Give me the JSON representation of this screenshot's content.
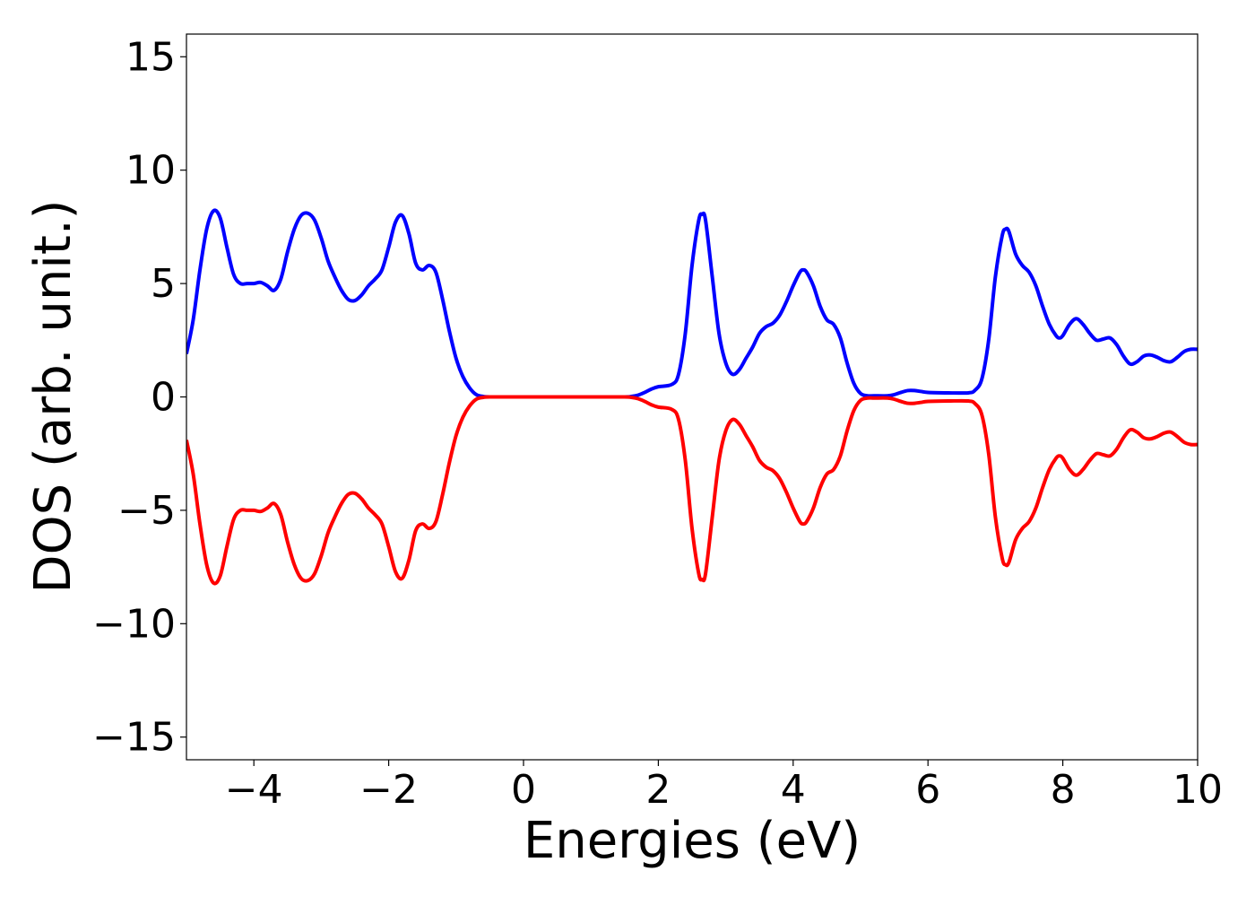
{
  "chart_data": {
    "type": "line",
    "title": "",
    "xlabel": "Energies (eV)",
    "ylabel": "DOS (arb. unit.)",
    "xlim": [
      -5,
      10
    ],
    "ylim": [
      -16,
      16
    ],
    "xticks": [
      -4,
      -2,
      0,
      2,
      4,
      6,
      8,
      10
    ],
    "xtick_labels": [
      "−4",
      "−2",
      "0",
      "2",
      "4",
      "6",
      "8",
      "10"
    ],
    "yticks": [
      -15,
      -10,
      -5,
      0,
      5,
      10,
      15
    ],
    "ytick_labels": [
      "−15",
      "−10",
      "−5",
      "0",
      "5",
      "10",
      "15"
    ],
    "grid": false,
    "legend": "none",
    "series": [
      {
        "color": "#0000ff",
        "points": [
          [
            -5.0,
            1.9
          ],
          [
            -4.9,
            3.4
          ],
          [
            -4.8,
            5.6
          ],
          [
            -4.7,
            7.4
          ],
          [
            -4.6,
            8.2
          ],
          [
            -4.5,
            7.9
          ],
          [
            -4.4,
            6.6
          ],
          [
            -4.3,
            5.4
          ],
          [
            -4.2,
            5.0
          ],
          [
            -4.1,
            5.0
          ],
          [
            -4.0,
            5.0
          ],
          [
            -3.9,
            5.05
          ],
          [
            -3.8,
            4.9
          ],
          [
            -3.7,
            4.7
          ],
          [
            -3.6,
            5.2
          ],
          [
            -3.5,
            6.4
          ],
          [
            -3.4,
            7.4
          ],
          [
            -3.3,
            8.0
          ],
          [
            -3.2,
            8.1
          ],
          [
            -3.1,
            7.8
          ],
          [
            -3.0,
            7.0
          ],
          [
            -2.9,
            6.0
          ],
          [
            -2.8,
            5.3
          ],
          [
            -2.7,
            4.7
          ],
          [
            -2.6,
            4.3
          ],
          [
            -2.5,
            4.25
          ],
          [
            -2.4,
            4.5
          ],
          [
            -2.3,
            4.9
          ],
          [
            -2.2,
            5.2
          ],
          [
            -2.1,
            5.6
          ],
          [
            -2.0,
            6.6
          ],
          [
            -1.9,
            7.7
          ],
          [
            -1.8,
            8.0
          ],
          [
            -1.7,
            7.2
          ],
          [
            -1.6,
            5.9
          ],
          [
            -1.5,
            5.6
          ],
          [
            -1.4,
            5.8
          ],
          [
            -1.3,
            5.5
          ],
          [
            -1.2,
            4.3
          ],
          [
            -1.1,
            2.9
          ],
          [
            -1.0,
            1.7
          ],
          [
            -0.9,
            0.9
          ],
          [
            -0.8,
            0.4
          ],
          [
            -0.7,
            0.1
          ],
          [
            -0.6,
            0.02
          ],
          [
            -0.5,
            0.0
          ],
          [
            0.0,
            0.0
          ],
          [
            1.0,
            0.0
          ],
          [
            1.5,
            0.0
          ],
          [
            1.6,
            0.02
          ],
          [
            1.7,
            0.08
          ],
          [
            1.8,
            0.2
          ],
          [
            1.9,
            0.35
          ],
          [
            2.0,
            0.45
          ],
          [
            2.2,
            0.55
          ],
          [
            2.3,
            1.0
          ],
          [
            2.4,
            2.8
          ],
          [
            2.5,
            5.8
          ],
          [
            2.6,
            7.8
          ],
          [
            2.65,
            8.05
          ],
          [
            2.7,
            7.8
          ],
          [
            2.8,
            5.3
          ],
          [
            2.9,
            2.8
          ],
          [
            3.0,
            1.5
          ],
          [
            3.1,
            1.0
          ],
          [
            3.2,
            1.2
          ],
          [
            3.3,
            1.7
          ],
          [
            3.4,
            2.2
          ],
          [
            3.5,
            2.8
          ],
          [
            3.6,
            3.1
          ],
          [
            3.7,
            3.25
          ],
          [
            3.8,
            3.6
          ],
          [
            3.9,
            4.2
          ],
          [
            4.0,
            4.9
          ],
          [
            4.1,
            5.5
          ],
          [
            4.15,
            5.6
          ],
          [
            4.2,
            5.5
          ],
          [
            4.3,
            4.9
          ],
          [
            4.4,
            4.0
          ],
          [
            4.5,
            3.4
          ],
          [
            4.6,
            3.2
          ],
          [
            4.7,
            2.6
          ],
          [
            4.8,
            1.5
          ],
          [
            4.9,
            0.6
          ],
          [
            5.0,
            0.15
          ],
          [
            5.1,
            0.05
          ],
          [
            5.2,
            0.05
          ],
          [
            5.4,
            0.05
          ],
          [
            5.5,
            0.1
          ],
          [
            5.6,
            0.2
          ],
          [
            5.7,
            0.28
          ],
          [
            5.8,
            0.28
          ],
          [
            5.9,
            0.24
          ],
          [
            6.0,
            0.2
          ],
          [
            6.3,
            0.18
          ],
          [
            6.6,
            0.18
          ],
          [
            6.7,
            0.3
          ],
          [
            6.8,
            0.8
          ],
          [
            6.9,
            2.5
          ],
          [
            7.0,
            5.3
          ],
          [
            7.1,
            7.1
          ],
          [
            7.15,
            7.4
          ],
          [
            7.2,
            7.3
          ],
          [
            7.3,
            6.3
          ],
          [
            7.4,
            5.8
          ],
          [
            7.5,
            5.5
          ],
          [
            7.6,
            4.9
          ],
          [
            7.7,
            4.0
          ],
          [
            7.8,
            3.2
          ],
          [
            7.9,
            2.7
          ],
          [
            7.95,
            2.6
          ],
          [
            8.0,
            2.7
          ],
          [
            8.1,
            3.2
          ],
          [
            8.2,
            3.45
          ],
          [
            8.3,
            3.2
          ],
          [
            8.4,
            2.8
          ],
          [
            8.5,
            2.5
          ],
          [
            8.6,
            2.55
          ],
          [
            8.7,
            2.6
          ],
          [
            8.8,
            2.3
          ],
          [
            8.9,
            1.8
          ],
          [
            9.0,
            1.45
          ],
          [
            9.1,
            1.55
          ],
          [
            9.2,
            1.8
          ],
          [
            9.3,
            1.85
          ],
          [
            9.4,
            1.75
          ],
          [
            9.5,
            1.6
          ],
          [
            9.6,
            1.55
          ],
          [
            9.7,
            1.75
          ],
          [
            9.8,
            2.0
          ],
          [
            9.9,
            2.1
          ],
          [
            10.0,
            2.1
          ]
        ]
      },
      {
        "color": "#ff0000",
        "points": [
          [
            -5.0,
            -1.9
          ],
          [
            -4.9,
            -3.4
          ],
          [
            -4.8,
            -5.6
          ],
          [
            -4.7,
            -7.4
          ],
          [
            -4.6,
            -8.2
          ],
          [
            -4.5,
            -7.9
          ],
          [
            -4.4,
            -6.6
          ],
          [
            -4.3,
            -5.4
          ],
          [
            -4.2,
            -5.0
          ],
          [
            -4.1,
            -5.0
          ],
          [
            -4.0,
            -5.0
          ],
          [
            -3.9,
            -5.05
          ],
          [
            -3.8,
            -4.9
          ],
          [
            -3.7,
            -4.7
          ],
          [
            -3.6,
            -5.2
          ],
          [
            -3.5,
            -6.4
          ],
          [
            -3.4,
            -7.4
          ],
          [
            -3.3,
            -8.0
          ],
          [
            -3.2,
            -8.1
          ],
          [
            -3.1,
            -7.8
          ],
          [
            -3.0,
            -7.0
          ],
          [
            -2.9,
            -6.0
          ],
          [
            -2.8,
            -5.3
          ],
          [
            -2.7,
            -4.7
          ],
          [
            -2.6,
            -4.3
          ],
          [
            -2.5,
            -4.25
          ],
          [
            -2.4,
            -4.5
          ],
          [
            -2.3,
            -4.9
          ],
          [
            -2.2,
            -5.2
          ],
          [
            -2.1,
            -5.6
          ],
          [
            -2.0,
            -6.6
          ],
          [
            -1.9,
            -7.7
          ],
          [
            -1.8,
            -8.0
          ],
          [
            -1.7,
            -7.2
          ],
          [
            -1.6,
            -5.9
          ],
          [
            -1.5,
            -5.6
          ],
          [
            -1.4,
            -5.8
          ],
          [
            -1.3,
            -5.5
          ],
          [
            -1.2,
            -4.3
          ],
          [
            -1.1,
            -2.9
          ],
          [
            -1.0,
            -1.7
          ],
          [
            -0.9,
            -0.9
          ],
          [
            -0.8,
            -0.4
          ],
          [
            -0.7,
            -0.1
          ],
          [
            -0.6,
            -0.02
          ],
          [
            -0.5,
            0.0
          ],
          [
            0.0,
            0.0
          ],
          [
            1.0,
            0.0
          ],
          [
            1.5,
            0.0
          ],
          [
            1.6,
            -0.02
          ],
          [
            1.7,
            -0.08
          ],
          [
            1.8,
            -0.2
          ],
          [
            1.9,
            -0.35
          ],
          [
            2.0,
            -0.45
          ],
          [
            2.2,
            -0.55
          ],
          [
            2.3,
            -1.0
          ],
          [
            2.4,
            -2.8
          ],
          [
            2.5,
            -5.8
          ],
          [
            2.6,
            -7.8
          ],
          [
            2.65,
            -8.05
          ],
          [
            2.7,
            -7.8
          ],
          [
            2.8,
            -5.3
          ],
          [
            2.9,
            -2.8
          ],
          [
            3.0,
            -1.5
          ],
          [
            3.1,
            -1.0
          ],
          [
            3.2,
            -1.2
          ],
          [
            3.3,
            -1.7
          ],
          [
            3.4,
            -2.2
          ],
          [
            3.5,
            -2.8
          ],
          [
            3.6,
            -3.1
          ],
          [
            3.7,
            -3.25
          ],
          [
            3.8,
            -3.6
          ],
          [
            3.9,
            -4.2
          ],
          [
            4.0,
            -4.9
          ],
          [
            4.1,
            -5.5
          ],
          [
            4.15,
            -5.6
          ],
          [
            4.2,
            -5.5
          ],
          [
            4.3,
            -4.9
          ],
          [
            4.4,
            -4.0
          ],
          [
            4.5,
            -3.4
          ],
          [
            4.6,
            -3.2
          ],
          [
            4.7,
            -2.6
          ],
          [
            4.8,
            -1.5
          ],
          [
            4.9,
            -0.6
          ],
          [
            5.0,
            -0.15
          ],
          [
            5.1,
            -0.05
          ],
          [
            5.2,
            -0.05
          ],
          [
            5.4,
            -0.05
          ],
          [
            5.5,
            -0.1
          ],
          [
            5.6,
            -0.2
          ],
          [
            5.7,
            -0.28
          ],
          [
            5.8,
            -0.28
          ],
          [
            5.9,
            -0.24
          ],
          [
            6.0,
            -0.2
          ],
          [
            6.3,
            -0.18
          ],
          [
            6.6,
            -0.18
          ],
          [
            6.7,
            -0.3
          ],
          [
            6.8,
            -0.8
          ],
          [
            6.9,
            -2.5
          ],
          [
            7.0,
            -5.3
          ],
          [
            7.1,
            -7.1
          ],
          [
            7.15,
            -7.4
          ],
          [
            7.2,
            -7.3
          ],
          [
            7.3,
            -6.3
          ],
          [
            7.4,
            -5.8
          ],
          [
            7.5,
            -5.5
          ],
          [
            7.6,
            -4.9
          ],
          [
            7.7,
            -4.0
          ],
          [
            7.8,
            -3.2
          ],
          [
            7.9,
            -2.7
          ],
          [
            7.95,
            -2.6
          ],
          [
            8.0,
            -2.7
          ],
          [
            8.1,
            -3.2
          ],
          [
            8.2,
            -3.45
          ],
          [
            8.3,
            -3.2
          ],
          [
            8.4,
            -2.8
          ],
          [
            8.5,
            -2.5
          ],
          [
            8.6,
            -2.55
          ],
          [
            8.7,
            -2.6
          ],
          [
            8.8,
            -2.3
          ],
          [
            8.9,
            -1.8
          ],
          [
            9.0,
            -1.45
          ],
          [
            9.1,
            -1.55
          ],
          [
            9.2,
            -1.8
          ],
          [
            9.3,
            -1.85
          ],
          [
            9.4,
            -1.75
          ],
          [
            9.5,
            -1.6
          ],
          [
            9.6,
            -1.55
          ],
          [
            9.7,
            -1.75
          ],
          [
            9.8,
            -2.0
          ],
          [
            9.9,
            -2.1
          ],
          [
            10.0,
            -2.1
          ]
        ]
      }
    ]
  }
}
